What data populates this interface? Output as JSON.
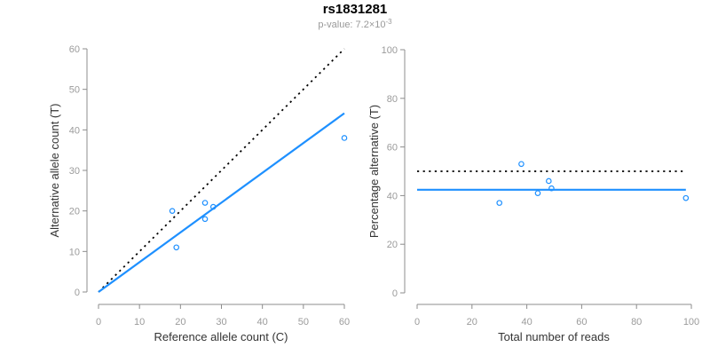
{
  "window": {
    "background": "#ffffff"
  },
  "header": {
    "title": "rs1831281",
    "subtitle_base": "p-value: 7.2×10",
    "subtitle_exponent": "-3"
  },
  "colors": {
    "accent_blue": "#1E90FF",
    "dotted_line": "#000000",
    "axis_line": "#8c8c8c",
    "tick_label": "#9b9b9b",
    "axis_title": "#333333",
    "title_text": "#000000",
    "subtitle_text": "#999999"
  },
  "chart_data": [
    {
      "type": "scatter",
      "xlabel": "Reference allele count (C)",
      "ylabel": "Alternative allele count (T)",
      "xlim": [
        0,
        60
      ],
      "ylim": [
        0,
        60
      ],
      "xticks": [
        0,
        10,
        20,
        30,
        40,
        50,
        60
      ],
      "yticks": [
        0,
        10,
        20,
        30,
        40,
        50,
        60
      ],
      "grid": false,
      "legend": "none",
      "points": [
        [
          18,
          20
        ],
        [
          26,
          22
        ],
        [
          28,
          21
        ],
        [
          26,
          18
        ],
        [
          19,
          11
        ],
        [
          60,
          38
        ]
      ],
      "lines": [
        {
          "name": "identity-dotted-line",
          "style": "dotted",
          "color": "#000000",
          "from": [
            0,
            0
          ],
          "to": [
            60,
            60
          ]
        },
        {
          "name": "fit-line",
          "style": "solid",
          "color": "#1E90FF",
          "from": [
            0,
            0
          ],
          "to": [
            60,
            44.1
          ]
        }
      ]
    },
    {
      "type": "scatter",
      "xlabel": "Total number of reads",
      "ylabel": "Percentage alternative (T)",
      "xlim": [
        0,
        100
      ],
      "ylim": [
        0,
        100
      ],
      "xticks": [
        0,
        20,
        40,
        60,
        80,
        100
      ],
      "yticks": [
        0,
        20,
        40,
        60,
        80,
        100
      ],
      "grid": false,
      "legend": "none",
      "points": [
        [
          38,
          53
        ],
        [
          48,
          46
        ],
        [
          49,
          43
        ],
        [
          44,
          41
        ],
        [
          30,
          37
        ],
        [
          98,
          39
        ]
      ],
      "lines": [
        {
          "name": "fifty-percent-dotted-line",
          "style": "dotted",
          "color": "#000000",
          "from": [
            0,
            50
          ],
          "to": [
            98,
            50
          ]
        },
        {
          "name": "mean-percentage-line",
          "style": "solid",
          "color": "#1E90FF",
          "from": [
            0,
            42.4
          ],
          "to": [
            98,
            42.4
          ]
        }
      ]
    }
  ]
}
